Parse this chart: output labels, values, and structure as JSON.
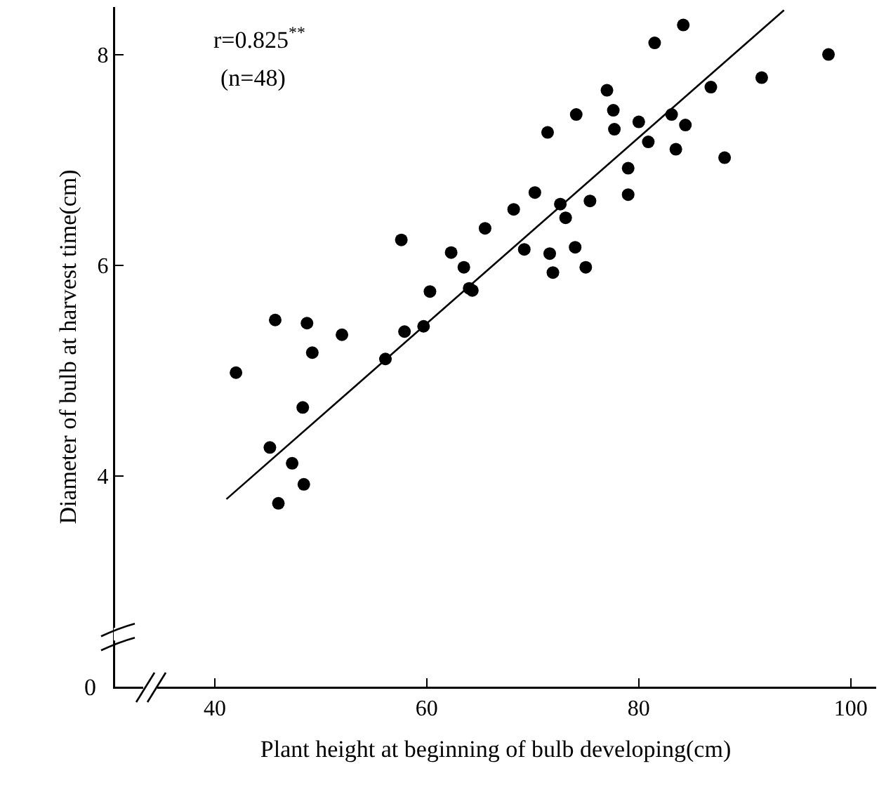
{
  "chart_data": {
    "type": "scatter",
    "xlabel": "Plant height at beginning of bulb developing(cm)",
    "ylabel": "Diameter of bulb at harvest time(cm)",
    "xlim": [
      30.6,
      102.4
    ],
    "ylim": [
      2,
      8.45
    ],
    "xticks": [
      40,
      60,
      80,
      100
    ],
    "yticks": [
      4,
      6,
      8
    ],
    "grid": false,
    "marker": "circle",
    "annotations": [
      "r=0.825$^{**}$",
      "(n=48)",
      "0"
    ],
    "series": [
      {
        "color": "#000000",
        "x": [
          42.0,
          45.7,
          48.7,
          49.2,
          52.0,
          48.3,
          56.1,
          57.9,
          59.7,
          57.6,
          60.3,
          62.3,
          63.5,
          64.3,
          65.5,
          45.2,
          47.3,
          48.4,
          46.0,
          68.2,
          70.2,
          71.4,
          72.6,
          73.1,
          69.2,
          71.6,
          71.9,
          74.0,
          75.0,
          75.4,
          74.1,
          77.0,
          77.6,
          77.7,
          79.0,
          79.0,
          80.0,
          80.9,
          81.5,
          83.1,
          84.4,
          83.5,
          84.2,
          86.8,
          88.1,
          91.6,
          97.9,
          64.0
        ],
        "values": [
          4.98,
          5.48,
          5.45,
          5.17,
          5.34,
          4.65,
          5.11,
          5.37,
          5.42,
          6.24,
          5.75,
          6.12,
          5.98,
          5.76,
          6.35,
          4.27,
          4.12,
          3.92,
          3.74,
          6.53,
          6.69,
          7.26,
          6.58,
          6.45,
          6.15,
          6.11,
          5.93,
          6.17,
          5.98,
          6.61,
          7.43,
          7.66,
          7.47,
          7.29,
          6.92,
          6.67,
          7.36,
          7.17,
          8.11,
          7.43,
          7.33,
          7.1,
          8.28,
          7.69,
          7.02,
          7.78,
          8.0,
          5.78
        ]
      },
      {
        "type": "line",
        "color": "#000000",
        "line_style": "solid",
        "marker": "none",
        "x": [
          41.1,
          93.7
        ],
        "values": [
          3.78,
          8.42
        ]
      }
    ]
  }
}
